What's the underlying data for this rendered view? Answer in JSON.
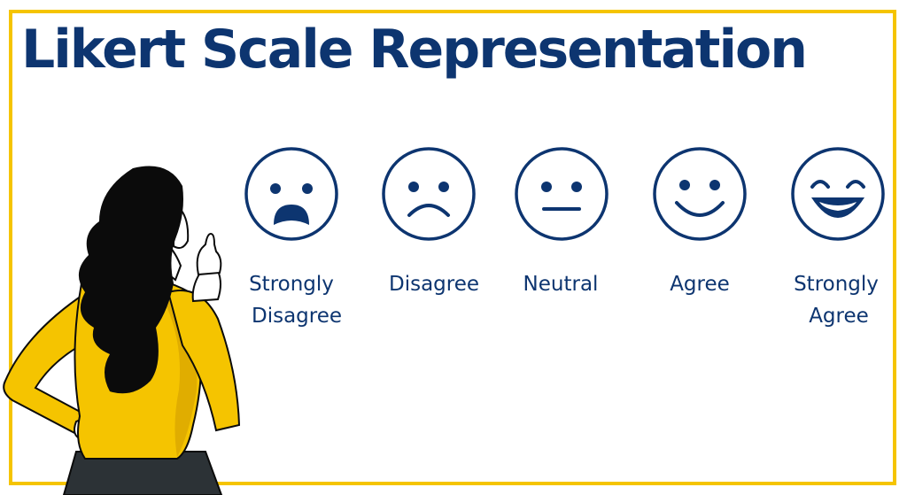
{
  "title": "Likert Scale Representation",
  "colors": {
    "frame": "#f5c400",
    "text": "#0d3570",
    "shirt": "#f5c400",
    "hair": "#0b0b0b",
    "skin": "#ffffff",
    "skirt": "#2c3236"
  },
  "scale": [
    {
      "icon": "very-sad-face-icon",
      "label_lines": [
        "Strongly",
        "Disagree"
      ]
    },
    {
      "icon": "sad-face-icon",
      "label_lines": [
        "Disagree"
      ]
    },
    {
      "icon": "neutral-face-icon",
      "label_lines": [
        "Neutral"
      ]
    },
    {
      "icon": "smiling-face-icon",
      "label_lines": [
        "Agree"
      ]
    },
    {
      "icon": "grinning-face-icon",
      "label_lines": [
        "Strongly",
        "Agree"
      ]
    }
  ],
  "illustration": {
    "subject": "woman-pointing-up-illustration"
  }
}
